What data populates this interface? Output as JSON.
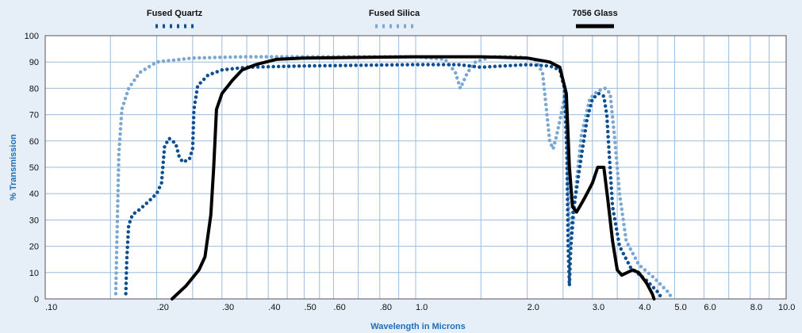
{
  "chart_data": {
    "type": "line",
    "title": "",
    "xlabel": "Wavelength in Microns",
    "ylabel": "% Transmission",
    "x_scale": "log",
    "xlim": [
      0.1,
      10.0
    ],
    "ylim": [
      0,
      100
    ],
    "grid": true,
    "legend_position": "top",
    "x_ticks": [
      {
        "value": 0.1,
        "label": ".10"
      },
      {
        "value": 0.2,
        "label": ".20"
      },
      {
        "value": 0.3,
        "label": ".30"
      },
      {
        "value": 0.4,
        "label": ".40"
      },
      {
        "value": 0.5,
        "label": ".50"
      },
      {
        "value": 0.6,
        "label": ".60"
      },
      {
        "value": 0.8,
        "label": ".80"
      },
      {
        "value": 1.0,
        "label": "1.0"
      },
      {
        "value": 2.0,
        "label": "2.0"
      },
      {
        "value": 3.0,
        "label": "3.0"
      },
      {
        "value": 4.0,
        "label": "4.0"
      },
      {
        "value": 5.0,
        "label": "5.0"
      },
      {
        "value": 6.0,
        "label": "6.0"
      },
      {
        "value": 8.0,
        "label": "8.0"
      },
      {
        "value": 10.0,
        "label": "10.0"
      }
    ],
    "x_grid": [
      0.1,
      0.15,
      0.2,
      0.25,
      0.3,
      0.35,
      0.4,
      0.45,
      0.5,
      0.55,
      0.6,
      0.7,
      0.8,
      0.9,
      1.0,
      1.5,
      2.0,
      2.5,
      3.0,
      3.5,
      4.0,
      4.5,
      5.0,
      6.0,
      7.0,
      8.0,
      9.0,
      10.0
    ],
    "y_ticks": [
      0,
      10,
      20,
      30,
      40,
      50,
      60,
      70,
      80,
      90,
      100
    ],
    "series": [
      {
        "name": "Fused Quartz",
        "color": "#0d4f91",
        "style": "dotted",
        "points": [
          [
            0.165,
            2
          ],
          [
            0.166,
            15
          ],
          [
            0.168,
            28
          ],
          [
            0.172,
            32
          ],
          [
            0.18,
            34
          ],
          [
            0.19,
            37
          ],
          [
            0.2,
            40
          ],
          [
            0.206,
            44
          ],
          [
            0.21,
            58
          ],
          [
            0.216,
            61
          ],
          [
            0.225,
            59
          ],
          [
            0.23,
            54
          ],
          [
            0.235,
            52
          ],
          [
            0.245,
            53
          ],
          [
            0.25,
            57
          ],
          [
            0.252,
            72
          ],
          [
            0.258,
            81
          ],
          [
            0.275,
            85
          ],
          [
            0.3,
            87
          ],
          [
            0.35,
            88
          ],
          [
            0.5,
            88.5
          ],
          [
            1.0,
            89
          ],
          [
            1.3,
            89
          ],
          [
            1.5,
            88
          ],
          [
            2.0,
            89
          ],
          [
            2.3,
            88.5
          ],
          [
            2.45,
            87
          ],
          [
            2.52,
            80
          ],
          [
            2.56,
            55
          ],
          [
            2.58,
            20
          ],
          [
            2.6,
            5
          ],
          [
            2.62,
            18
          ],
          [
            2.66,
            33
          ],
          [
            2.72,
            42
          ],
          [
            2.8,
            54
          ],
          [
            2.9,
            68
          ],
          [
            3.0,
            76
          ],
          [
            3.12,
            78
          ],
          [
            3.22,
            77
          ],
          [
            3.28,
            70
          ],
          [
            3.33,
            55
          ],
          [
            3.4,
            35
          ],
          [
            3.55,
            20
          ],
          [
            3.8,
            12
          ],
          [
            4.2,
            7
          ],
          [
            4.55,
            2
          ],
          [
            4.6,
            0
          ]
        ]
      },
      {
        "name": "Fused Silica",
        "color": "#7aa8d2",
        "style": "dotted",
        "points": [
          [
            0.155,
            2
          ],
          [
            0.156,
            20
          ],
          [
            0.158,
            55
          ],
          [
            0.161,
            72
          ],
          [
            0.168,
            80
          ],
          [
            0.18,
            86
          ],
          [
            0.2,
            90
          ],
          [
            0.25,
            91.5
          ],
          [
            0.35,
            92
          ],
          [
            0.5,
            92
          ],
          [
            1.0,
            92
          ],
          [
            1.2,
            91
          ],
          [
            1.28,
            86
          ],
          [
            1.32,
            80
          ],
          [
            1.38,
            86
          ],
          [
            1.45,
            90
          ],
          [
            1.6,
            92
          ],
          [
            1.9,
            92
          ],
          [
            2.1,
            91
          ],
          [
            2.2,
            86
          ],
          [
            2.25,
            73
          ],
          [
            2.3,
            60
          ],
          [
            2.35,
            57
          ],
          [
            2.4,
            62
          ],
          [
            2.47,
            70
          ],
          [
            2.53,
            78
          ],
          [
            2.56,
            62
          ],
          [
            2.59,
            35
          ],
          [
            2.62,
            20
          ],
          [
            2.66,
            28
          ],
          [
            2.72,
            45
          ],
          [
            2.8,
            62
          ],
          [
            2.95,
            76
          ],
          [
            3.1,
            79
          ],
          [
            3.25,
            80
          ],
          [
            3.35,
            78
          ],
          [
            3.45,
            60
          ],
          [
            3.55,
            40
          ],
          [
            3.7,
            22
          ],
          [
            4.0,
            13
          ],
          [
            4.4,
            8
          ],
          [
            4.85,
            2
          ],
          [
            4.9,
            0
          ]
        ]
      },
      {
        "name": "7056 Glass",
        "color": "#000000",
        "style": "solid",
        "points": [
          [
            0.22,
            0
          ],
          [
            0.24,
            5
          ],
          [
            0.26,
            11
          ],
          [
            0.27,
            16
          ],
          [
            0.28,
            32
          ],
          [
            0.285,
            50
          ],
          [
            0.29,
            72
          ],
          [
            0.3,
            78
          ],
          [
            0.32,
            83
          ],
          [
            0.34,
            87
          ],
          [
            0.37,
            89
          ],
          [
            0.42,
            91
          ],
          [
            0.5,
            91.5
          ],
          [
            1.0,
            92
          ],
          [
            1.5,
            92
          ],
          [
            2.0,
            91.5
          ],
          [
            2.3,
            90
          ],
          [
            2.45,
            88
          ],
          [
            2.55,
            78
          ],
          [
            2.6,
            50
          ],
          [
            2.65,
            35
          ],
          [
            2.72,
            33
          ],
          [
            2.85,
            38
          ],
          [
            3.0,
            44
          ],
          [
            3.1,
            50
          ],
          [
            3.22,
            50
          ],
          [
            3.3,
            38
          ],
          [
            3.4,
            22
          ],
          [
            3.5,
            11
          ],
          [
            3.6,
            9
          ],
          [
            3.85,
            11
          ],
          [
            4.0,
            10
          ],
          [
            4.2,
            6
          ],
          [
            4.35,
            2
          ],
          [
            4.4,
            0
          ]
        ]
      }
    ]
  }
}
